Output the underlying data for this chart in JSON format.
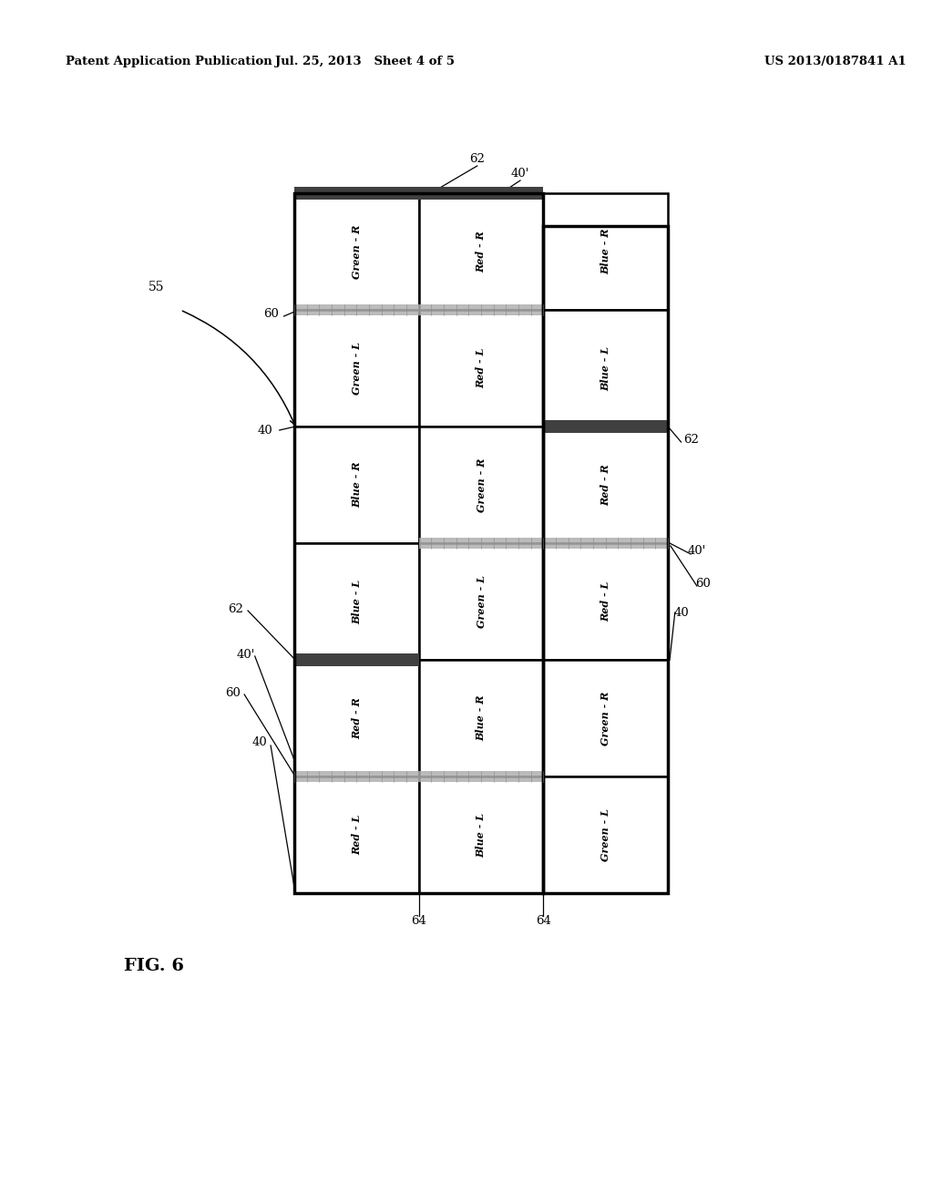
{
  "title_left": "Patent Application Publication",
  "title_mid": "Jul. 25, 2013   Sheet 4 of 5",
  "title_right": "US 2013/0187841 A1",
  "fig_label": "FIG. 6",
  "background": "#ffffff",
  "cell_labels": [
    [
      "Green - R",
      "Red - R",
      "Blue - R"
    ],
    [
      "Green - L",
      "Red - L",
      "Blue - L"
    ],
    [
      "Blue - R",
      "Green - R",
      "Red - R"
    ],
    [
      "Blue - L",
      "Green - L",
      "Red - L"
    ],
    [
      "Red - R",
      "Blue - R",
      "Green - R"
    ],
    [
      "Red - L",
      "Blue - L",
      "Green - L"
    ]
  ]
}
